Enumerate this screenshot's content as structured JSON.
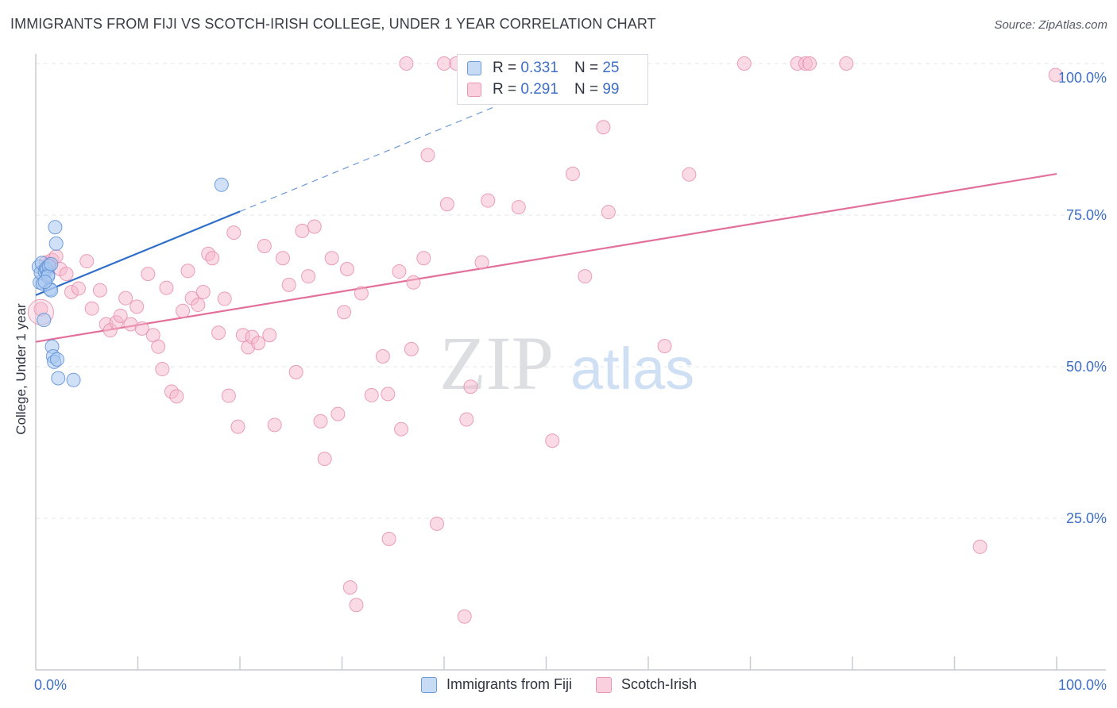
{
  "title": "IMMIGRANTS FROM FIJI VS SCOTCH-IRISH COLLEGE, UNDER 1 YEAR CORRELATION CHART",
  "source": "Source: ZipAtlas.com",
  "watermark": {
    "zip": "ZIP",
    "atlas": "atlas"
  },
  "colors": {
    "fiji_fill": "#a9c8f0",
    "fiji_stroke": "#5d8fd6",
    "fiji_line": "#2f6fc9",
    "scotch_fill": "#f6b8cc",
    "scotch_stroke": "#e58aa9",
    "scotch_line": "#e2709a",
    "axis_text": "#3f6fc4",
    "grid": "#e1e4e8"
  },
  "legend_top": [
    {
      "r_label": "R =",
      "r_value": "0.331",
      "n_label": "N =",
      "n_value": "25"
    },
    {
      "r_label": "R =",
      "r_value": "0.291",
      "n_label": "N =",
      "n_value": "99"
    }
  ],
  "chart_data": {
    "type": "scatter",
    "title": "IMMIGRANTS FROM FIJI VS SCOTCH-IRISH COLLEGE, UNDER 1 YEAR CORRELATION CHART",
    "xlabel": "",
    "ylabel": "College, Under 1 year",
    "xlim": [
      0,
      100
    ],
    "ylim": [
      0,
      100
    ],
    "x_tick_labels": [
      "0.0%",
      "100.0%"
    ],
    "y_tick_labels": [
      "25.0%",
      "50.0%",
      "75.0%",
      "100.0%"
    ],
    "y_ticks": [
      25,
      50,
      75,
      100
    ],
    "grid": true,
    "legend_position": "bottom-center",
    "series": [
      {
        "name": "Immigrants from Fiji",
        "r": 0.331,
        "n": 25,
        "trend": {
          "x": [
            0,
            20
          ],
          "y": [
            61.8,
            75.6
          ],
          "dashed_to": [
            45,
            92.9
          ]
        },
        "points": [
          [
            0.3,
            66.5
          ],
          [
            0.4,
            63.9
          ],
          [
            0.5,
            65.5
          ],
          [
            0.6,
            67.1
          ],
          [
            0.7,
            63.7
          ],
          [
            0.8,
            57.7
          ],
          [
            0.9,
            65.7
          ],
          [
            1.0,
            66.2
          ],
          [
            1.1,
            66.0
          ],
          [
            1.2,
            65.2
          ],
          [
            1.3,
            66.6
          ],
          [
            1.4,
            62.8
          ],
          [
            1.5,
            62.6
          ],
          [
            1.6,
            53.3
          ],
          [
            1.7,
            51.7
          ],
          [
            1.8,
            50.8
          ],
          [
            1.9,
            73.0
          ],
          [
            2.0,
            70.3
          ],
          [
            2.1,
            51.2
          ],
          [
            2.2,
            48.1
          ],
          [
            3.7,
            47.8
          ],
          [
            18.2,
            80.0
          ],
          [
            1.2,
            64.9
          ],
          [
            0.9,
            64.0
          ],
          [
            1.5,
            66.9
          ]
        ]
      },
      {
        "name": "Scotch-Irish",
        "r": 0.291,
        "n": 99,
        "trend": {
          "x": [
            0,
            100
          ],
          "y": [
            54.1,
            81.8
          ]
        },
        "points": [
          [
            0.5,
            59.5
          ],
          [
            1.0,
            67.2
          ],
          [
            1.3,
            66.9
          ],
          [
            1.6,
            67.6
          ],
          [
            2.0,
            68.2
          ],
          [
            2.4,
            66.1
          ],
          [
            3.0,
            65.3
          ],
          [
            3.5,
            62.3
          ],
          [
            4.2,
            62.9
          ],
          [
            5.0,
            67.4
          ],
          [
            5.5,
            59.6
          ],
          [
            6.3,
            62.6
          ],
          [
            6.9,
            57.0
          ],
          [
            7.3,
            56.0
          ],
          [
            7.9,
            57.3
          ],
          [
            8.3,
            58.4
          ],
          [
            8.8,
            61.3
          ],
          [
            9.3,
            57.0
          ],
          [
            9.9,
            59.9
          ],
          [
            10.4,
            56.3
          ],
          [
            11.0,
            65.3
          ],
          [
            11.5,
            55.2
          ],
          [
            12.0,
            53.3
          ],
          [
            12.4,
            49.6
          ],
          [
            12.8,
            63.0
          ],
          [
            13.3,
            45.9
          ],
          [
            13.8,
            45.1
          ],
          [
            14.4,
            59.2
          ],
          [
            14.9,
            65.8
          ],
          [
            15.3,
            61.3
          ],
          [
            15.9,
            60.2
          ],
          [
            16.4,
            62.3
          ],
          [
            16.9,
            68.6
          ],
          [
            17.3,
            67.9
          ],
          [
            17.9,
            55.6
          ],
          [
            18.5,
            61.2
          ],
          [
            18.9,
            45.2
          ],
          [
            19.4,
            72.1
          ],
          [
            19.8,
            40.1
          ],
          [
            20.3,
            55.2
          ],
          [
            20.8,
            53.2
          ],
          [
            21.2,
            54.9
          ],
          [
            21.8,
            53.9
          ],
          [
            22.4,
            69.9
          ],
          [
            22.9,
            55.2
          ],
          [
            23.4,
            40.4
          ],
          [
            24.2,
            67.9
          ],
          [
            24.8,
            63.5
          ],
          [
            25.5,
            49.1
          ],
          [
            26.1,
            72.4
          ],
          [
            26.7,
            64.9
          ],
          [
            27.3,
            73.1
          ],
          [
            27.9,
            41.0
          ],
          [
            28.3,
            34.8
          ],
          [
            29.0,
            67.9
          ],
          [
            29.6,
            42.2
          ],
          [
            30.2,
            59.0
          ],
          [
            30.5,
            66.1
          ],
          [
            30.8,
            13.6
          ],
          [
            31.4,
            10.7
          ],
          [
            31.9,
            62.1
          ],
          [
            32.9,
            45.3
          ],
          [
            34.0,
            51.7
          ],
          [
            34.5,
            45.5
          ],
          [
            34.6,
            21.6
          ],
          [
            35.6,
            65.7
          ],
          [
            35.8,
            39.7
          ],
          [
            36.3,
            100.0
          ],
          [
            36.8,
            52.9
          ],
          [
            37.0,
            63.9
          ],
          [
            38.0,
            67.9
          ],
          [
            38.4,
            84.9
          ],
          [
            39.3,
            24.1
          ],
          [
            40.0,
            100.0
          ],
          [
            40.3,
            76.8
          ],
          [
            41.2,
            100.0
          ],
          [
            42.0,
            8.8
          ],
          [
            42.2,
            41.3
          ],
          [
            42.6,
            46.7
          ],
          [
            43.7,
            67.2
          ],
          [
            44.3,
            77.4
          ],
          [
            47.3,
            76.3
          ],
          [
            50.6,
            37.8
          ],
          [
            51.8,
            100.0
          ],
          [
            52.6,
            81.8
          ],
          [
            53.8,
            64.9
          ],
          [
            55.6,
            89.5
          ],
          [
            56.1,
            75.5
          ],
          [
            57.2,
            100.0
          ],
          [
            61.6,
            53.4
          ],
          [
            64.0,
            81.7
          ],
          [
            69.4,
            100.0
          ],
          [
            74.6,
            100.0
          ],
          [
            75.4,
            100.0
          ],
          [
            75.8,
            100.0
          ],
          [
            79.4,
            100.0
          ],
          [
            92.5,
            20.3
          ],
          [
            99.9,
            98.1
          ],
          [
            0.5,
            59.0
          ]
        ]
      }
    ]
  }
}
